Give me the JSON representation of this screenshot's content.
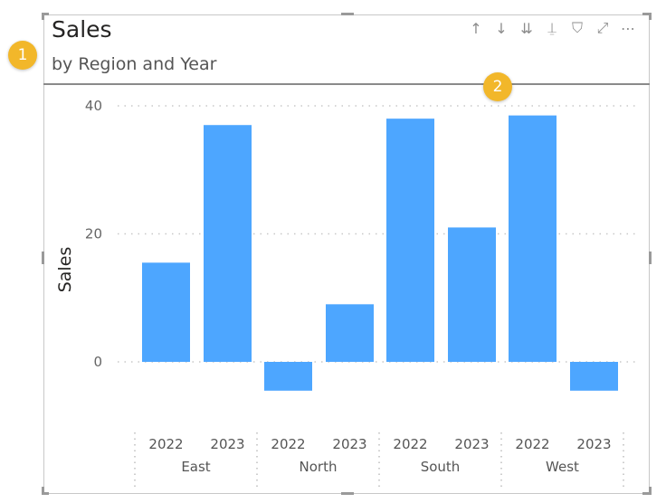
{
  "visual": {
    "title": "Sales",
    "subtitle": "by Region and Year"
  },
  "annotations": [
    "1",
    "2"
  ],
  "toolbar": [
    {
      "name": "drill-up-icon",
      "glyph": "↑"
    },
    {
      "name": "drill-down-icon",
      "glyph": "↓"
    },
    {
      "name": "expand-next-level-icon",
      "glyph": "⇊"
    },
    {
      "name": "expand-hierarchy-icon",
      "glyph": "⍊"
    },
    {
      "name": "filter-icon",
      "glyph": "⛉"
    },
    {
      "name": "focus-mode-icon",
      "glyph": "⤢"
    },
    {
      "name": "more-options-icon",
      "glyph": "⋯"
    }
  ],
  "colors": {
    "bar": "#4da6ff",
    "badge": "#f2b72a"
  },
  "chart_data": {
    "type": "bar",
    "title": "",
    "ylabel": "Sales",
    "xlabel": "",
    "ylim": [
      -8,
      40
    ],
    "yticks": [
      0,
      20,
      40
    ],
    "grid": true,
    "groups": [
      {
        "region": "East",
        "years": [
          "2022",
          "2023"
        ],
        "values": [
          15.5,
          37
        ]
      },
      {
        "region": "North",
        "years": [
          "2022",
          "2023"
        ],
        "values": [
          -4.5,
          9
        ]
      },
      {
        "region": "South",
        "years": [
          "2022",
          "2023"
        ],
        "values": [
          38,
          21
        ]
      },
      {
        "region": "West",
        "years": [
          "2022",
          "2023"
        ],
        "values": [
          38.5,
          -4.5
        ]
      }
    ]
  }
}
